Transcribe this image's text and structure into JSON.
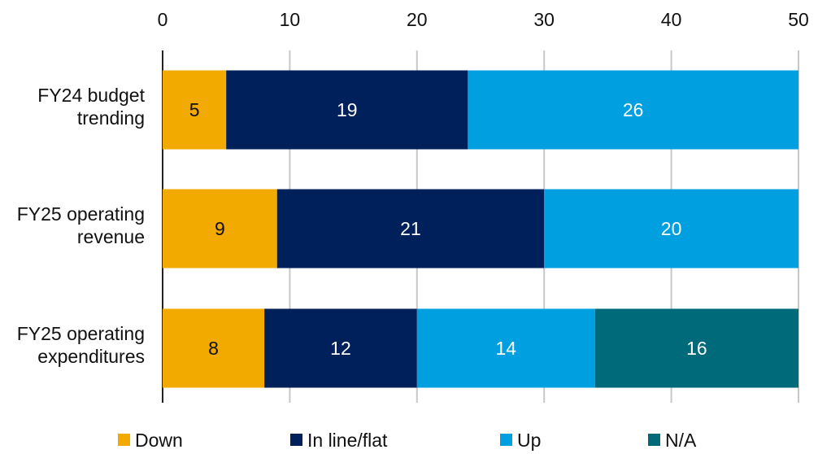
{
  "chart_data": {
    "type": "bar",
    "orientation": "horizontal",
    "stacked": true,
    "categories": [
      [
        "FY24 budget",
        "trending"
      ],
      [
        "FY25 operating",
        "revenue"
      ],
      [
        "FY25 operating",
        "expenditures"
      ]
    ],
    "series": [
      {
        "name": "Down",
        "color": "#f2a900",
        "label_color": "#111111",
        "values": [
          5,
          9,
          8
        ]
      },
      {
        "name": "In line/flat",
        "color": "#00205b",
        "label_color": "#ffffff",
        "values": [
          19,
          21,
          12
        ]
      },
      {
        "name": "Up",
        "color": "#009fdf",
        "label_color": "#ffffff",
        "values": [
          26,
          20,
          14
        ]
      },
      {
        "name": "N/A",
        "color": "#006a7a",
        "label_color": "#ffffff",
        "values": [
          0,
          0,
          16
        ]
      }
    ],
    "xlim": [
      0,
      50
    ],
    "xticks": [
      0,
      10,
      20,
      30,
      40,
      50
    ],
    "xaxis_position": "top",
    "grid": "vertical",
    "legend_position": "bottom",
    "title": "",
    "xlabel": "",
    "ylabel": ""
  }
}
